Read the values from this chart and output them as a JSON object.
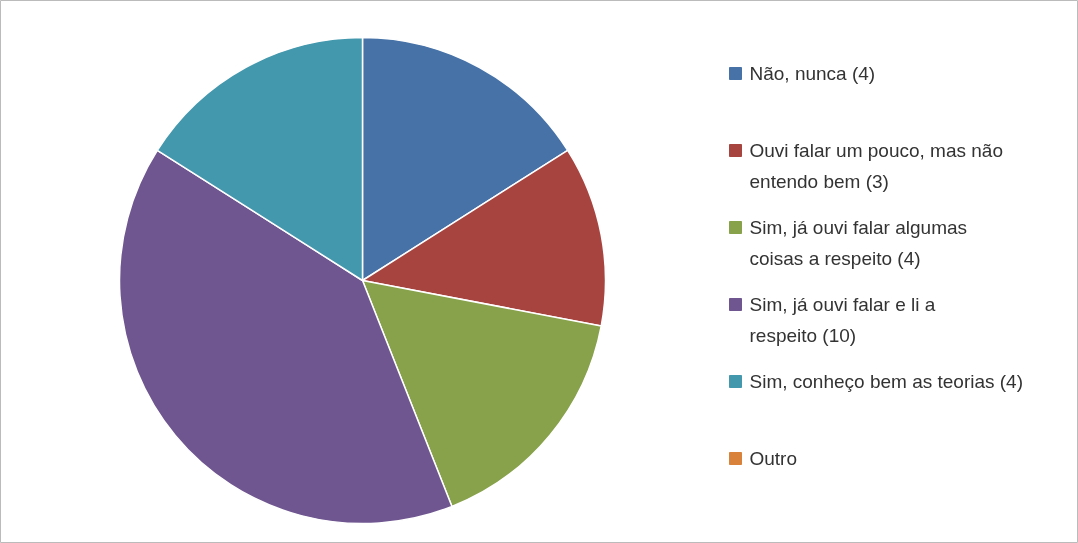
{
  "chart_data": {
    "type": "pie",
    "categories": [
      "Não, nunca (4)",
      "Ouvi falar um pouco, mas não entendo bem (3)",
      "Sim, já ouvi falar algumas coisas a respeito (4)",
      "Sim, já ouvi falar e li a respeito (10)",
      "Sim, conheço bem as teorias (4)",
      "Outro"
    ],
    "values": [
      4,
      3,
      4,
      10,
      4,
      0
    ],
    "colors": [
      "#4672a8",
      "#a8443f",
      "#87a24b",
      "#6f5690",
      "#4398ae",
      "#d9823b"
    ],
    "legend": "right"
  }
}
